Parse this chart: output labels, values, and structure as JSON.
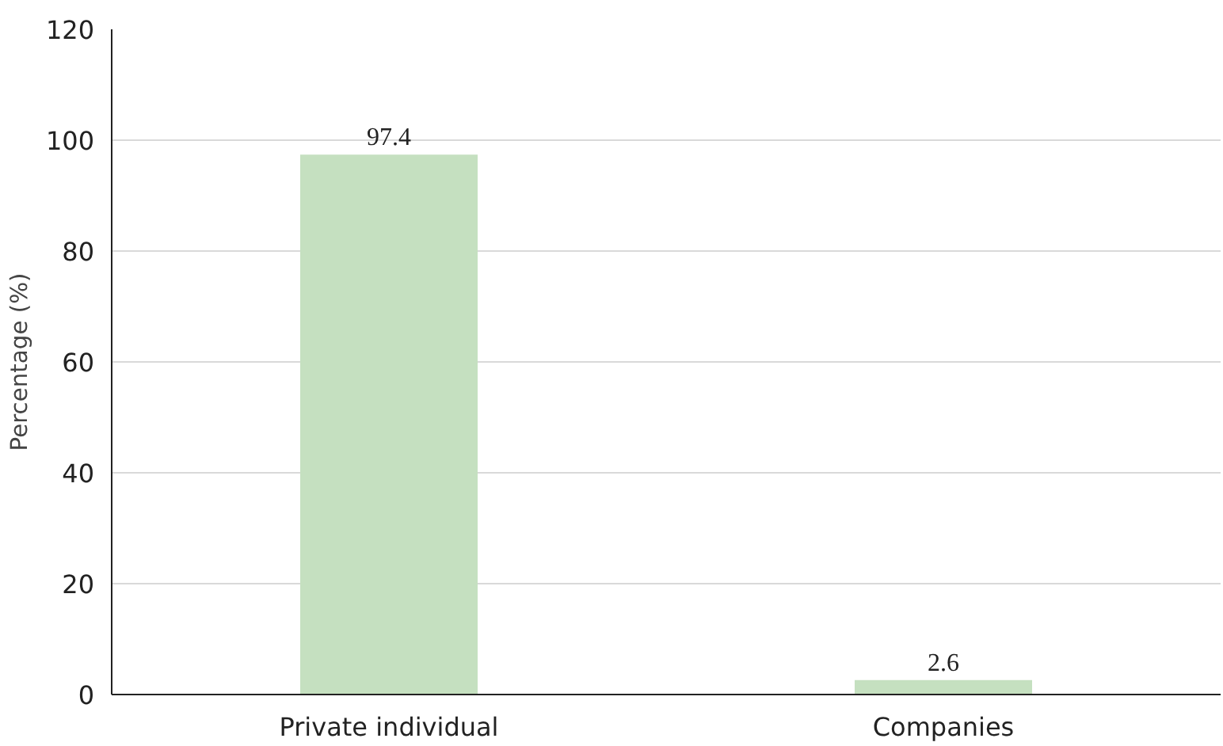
{
  "chart_data": {
    "type": "bar",
    "ylabel": "Percentage (%)",
    "categories": [
      "Private individual",
      "Companies"
    ],
    "values": [
      97.4,
      2.6
    ],
    "color": "#c5e0c0",
    "ylim": [
      0,
      120
    ],
    "yticks": [
      0,
      20,
      40,
      60,
      80,
      100,
      120
    ],
    "grid": "y",
    "data_labels": true
  }
}
